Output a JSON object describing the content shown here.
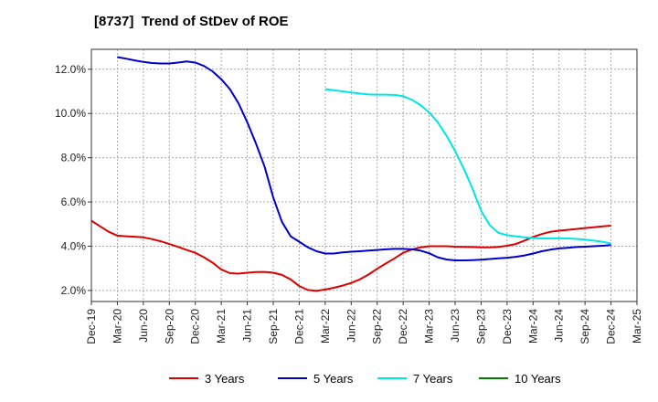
{
  "chart_data": {
    "type": "line",
    "title": "[8737]  Trend of StDev of ROE",
    "x_tick_labels": [
      "Dec-19",
      "Mar-20",
      "Jun-20",
      "Sep-20",
      "Dec-20",
      "Mar-21",
      "Jun-21",
      "Sep-21",
      "Dec-21",
      "Mar-22",
      "Jun-22",
      "Sep-22",
      "Dec-22",
      "Mar-23",
      "Jun-23",
      "Sep-23",
      "Dec-23",
      "Mar-24",
      "Jun-24",
      "Sep-24",
      "Dec-24",
      "Mar-25"
    ],
    "y_tick_labels": [
      "2.0%",
      "4.0%",
      "6.0%",
      "8.0%",
      "10.0%",
      "12.0%"
    ],
    "y_ticks": [
      2,
      4,
      6,
      8,
      10,
      12
    ],
    "ylim": [
      1.5,
      12.9
    ],
    "grid": true,
    "legend_position": "bottom",
    "series": [
      {
        "name": "3 Years",
        "color": "#dd0000",
        "x": [
          "Dec-19",
          "Jan-20",
          "Feb-20",
          "Mar-20",
          "Apr-20",
          "May-20",
          "Jun-20",
          "Jul-20",
          "Aug-20",
          "Sep-20",
          "Oct-20",
          "Nov-20",
          "Dec-20",
          "Jan-21",
          "Feb-21",
          "Mar-21",
          "Apr-21",
          "May-21",
          "Jun-21",
          "Jul-21",
          "Aug-21",
          "Sep-21",
          "Oct-21",
          "Nov-21",
          "Dec-21",
          "Jan-22",
          "Feb-22",
          "Mar-22",
          "Apr-22",
          "May-22",
          "Jun-22",
          "Jul-22",
          "Aug-22",
          "Sep-22",
          "Oct-22",
          "Nov-22",
          "Dec-22",
          "Jan-23",
          "Feb-23",
          "Mar-23",
          "Apr-23",
          "May-23",
          "Jun-23",
          "Jul-23",
          "Aug-23",
          "Sep-23",
          "Oct-23",
          "Nov-23",
          "Dec-23",
          "Jan-24",
          "Feb-24",
          "Mar-24",
          "Apr-24",
          "May-24",
          "Jun-24",
          "Jul-24",
          "Aug-24",
          "Sep-24",
          "Oct-24",
          "Nov-24",
          "Dec-24"
        ],
        "values": [
          5.15,
          4.9,
          4.65,
          4.48,
          4.45,
          4.43,
          4.4,
          4.32,
          4.22,
          4.1,
          3.97,
          3.83,
          3.7,
          3.5,
          3.25,
          2.95,
          2.78,
          2.76,
          2.8,
          2.83,
          2.84,
          2.8,
          2.7,
          2.5,
          2.2,
          2.02,
          1.98,
          2.04,
          2.12,
          2.22,
          2.34,
          2.5,
          2.72,
          2.98,
          3.22,
          3.45,
          3.7,
          3.85,
          3.95,
          4.0,
          4.0,
          4.0,
          3.98,
          3.97,
          3.96,
          3.95,
          3.95,
          3.97,
          4.02,
          4.1,
          4.25,
          4.42,
          4.55,
          4.65,
          4.7,
          4.74,
          4.78,
          4.82,
          4.86,
          4.9,
          4.93
        ]
      },
      {
        "name": "5 Years",
        "color": "#0000cc",
        "x": [
          "Mar-20",
          "Apr-20",
          "May-20",
          "Jun-20",
          "Jul-20",
          "Aug-20",
          "Sep-20",
          "Oct-20",
          "Nov-20",
          "Dec-20",
          "Jan-21",
          "Feb-21",
          "Mar-21",
          "Apr-21",
          "May-21",
          "Jun-21",
          "Jul-21",
          "Aug-21",
          "Sep-21",
          "Oct-21",
          "Nov-21",
          "Dec-21",
          "Jan-22",
          "Feb-22",
          "Mar-22",
          "Apr-22",
          "May-22",
          "Jun-22",
          "Jul-22",
          "Aug-22",
          "Sep-22",
          "Oct-22",
          "Nov-22",
          "Dec-22",
          "Jan-23",
          "Feb-23",
          "Mar-23",
          "Apr-23",
          "May-23",
          "Jun-23",
          "Jul-23",
          "Aug-23",
          "Sep-23",
          "Oct-23",
          "Nov-23",
          "Dec-23",
          "Jan-24",
          "Feb-24",
          "Mar-24",
          "Apr-24",
          "May-24",
          "Jun-24",
          "Jul-24",
          "Aug-24",
          "Sep-24",
          "Oct-24",
          "Nov-24",
          "Dec-24"
        ],
        "values": [
          12.55,
          12.48,
          12.4,
          12.33,
          12.28,
          12.26,
          12.26,
          12.3,
          12.35,
          12.3,
          12.15,
          11.9,
          11.55,
          11.1,
          10.45,
          9.6,
          8.65,
          7.6,
          6.2,
          5.1,
          4.45,
          4.2,
          3.95,
          3.77,
          3.67,
          3.67,
          3.72,
          3.75,
          3.77,
          3.8,
          3.83,
          3.86,
          3.88,
          3.88,
          3.86,
          3.8,
          3.68,
          3.5,
          3.4,
          3.36,
          3.36,
          3.37,
          3.39,
          3.42,
          3.45,
          3.48,
          3.52,
          3.58,
          3.67,
          3.77,
          3.84,
          3.9,
          3.93,
          3.96,
          3.98,
          4.0,
          4.02,
          4.05
        ]
      },
      {
        "name": "7 Years",
        "color": "#00e6e6",
        "x": [
          "Mar-22",
          "Apr-22",
          "May-22",
          "Jun-22",
          "Jul-22",
          "Aug-22",
          "Sep-22",
          "Oct-22",
          "Nov-22",
          "Dec-22",
          "Jan-23",
          "Feb-23",
          "Mar-23",
          "Apr-23",
          "May-23",
          "Jun-23",
          "Jul-23",
          "Aug-23",
          "Sep-23",
          "Oct-23",
          "Nov-23",
          "Dec-23",
          "Jan-24",
          "Feb-24",
          "Mar-24",
          "Apr-24",
          "May-24",
          "Jun-24",
          "Jul-24",
          "Aug-24",
          "Sep-24",
          "Oct-24",
          "Nov-24",
          "Dec-24"
        ],
        "values": [
          11.1,
          11.05,
          11.0,
          10.95,
          10.9,
          10.86,
          10.85,
          10.85,
          10.84,
          10.78,
          10.62,
          10.38,
          10.05,
          9.6,
          9.0,
          8.3,
          7.5,
          6.6,
          5.6,
          4.95,
          4.6,
          4.5,
          4.45,
          4.4,
          4.37,
          4.35,
          4.35,
          4.36,
          4.35,
          4.33,
          4.3,
          4.25,
          4.2,
          4.12
        ]
      },
      {
        "name": "10 Years",
        "color": "#008000",
        "x": [],
        "values": []
      }
    ]
  }
}
